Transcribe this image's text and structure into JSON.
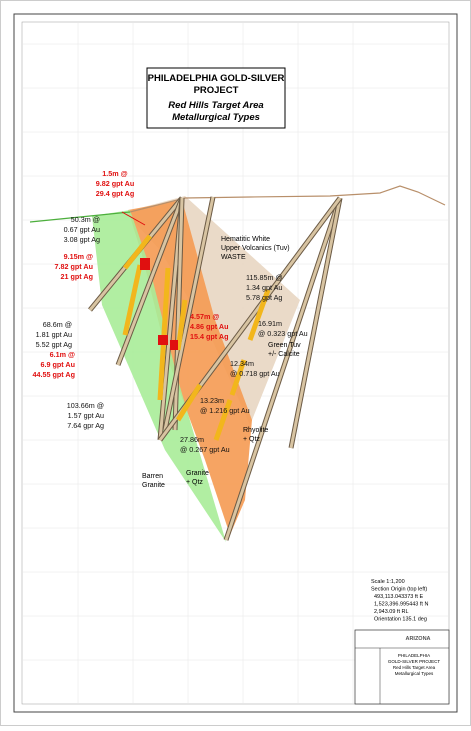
{
  "title": {
    "lines": [
      "PHILADELPHIA GOLD-SILVER",
      "PROJECT",
      "Red Hills Target Area",
      "Metallurgical Types"
    ]
  },
  "zones": [
    "Hematitic White",
    "Upper Volcanics (Tuv)",
    "WASTE",
    "Green Tuv",
    "+/- Calcite",
    "Rhyolite",
    "+ Qtz",
    "Granite",
    "+ Qtz",
    "Barren",
    "Granite"
  ],
  "intercepts": [
    {
      "color": "red",
      "lines": [
        "1.5m @",
        "9.82 gpt Au",
        "29.4 gpt Ag"
      ]
    },
    {
      "color": "black",
      "lines": [
        "50.3m @",
        "0.67 gpt Au",
        "3.08 gpt Ag"
      ]
    },
    {
      "color": "red",
      "lines": [
        "9.15m @",
        "7.82 gpt Au",
        "21 gpt Ag"
      ]
    },
    {
      "color": "black",
      "lines": [
        "115.85m @",
        "1.34 gpt Au",
        "5.78 gpt Ag"
      ]
    },
    {
      "color": "red",
      "lines": [
        "4.57m @",
        "4.86 gpt Au",
        "15.4 gpt Ag"
      ]
    },
    {
      "color": "black",
      "lines": [
        "68.6m @",
        "1.81 gpt Au",
        "5.52 gpt Ag"
      ]
    },
    {
      "color": "black",
      "lines": [
        "16.91m",
        "@ 0.323 gpt Au"
      ]
    },
    {
      "color": "red",
      "lines": [
        "6.1m @",
        "6.9 gpt Au",
        "44.55 gpt Ag"
      ]
    },
    {
      "color": "black",
      "lines": [
        "12.34m",
        "@ 0.718 gpt Au"
      ]
    },
    {
      "color": "black",
      "lines": [
        "103.66m @",
        "1.57 gpt Au",
        "7.64 gpr Ag"
      ]
    },
    {
      "color": "black",
      "lines": [
        "13.23m",
        "@ 1.216 gpt Au"
      ]
    },
    {
      "color": "black",
      "lines": [
        "27.86m",
        "@ 0.267 gpt Au"
      ]
    }
  ],
  "scale": {
    "lines": [
      "Scale 1:1,200",
      "Section Origin (top left)",
      "493,113.043373 ft E",
      "1,523,396.995443 ft N",
      "2,943.09 ft RL",
      "Orientation 135.1 deg"
    ]
  },
  "title_block": {
    "company": "ARIZONA",
    "lines": [
      "PHILADELPHIA",
      "GOLD-SILVER PROJECT",
      "Red Hills Target Area",
      "Metallurgical Types"
    ]
  }
}
